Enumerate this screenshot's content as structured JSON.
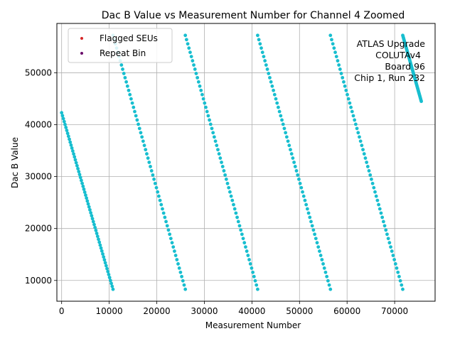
{
  "chart_data": {
    "type": "scatter",
    "title": "Dac B Value vs Measurement Number for Channel 4 Zoomed",
    "xlabel": "Measurement Number",
    "ylabel": "Dac B Value",
    "xlim": [
      -1000,
      78500
    ],
    "ylim": [
      6000,
      59500
    ],
    "xticks": [
      0,
      10000,
      20000,
      30000,
      40000,
      50000,
      60000,
      70000
    ],
    "yticks": [
      10000,
      20000,
      30000,
      40000,
      50000
    ],
    "grid": true,
    "legend_position": "top-left",
    "legend": [
      {
        "label": "Flagged SEUs",
        "color": "#d62728"
      },
      {
        "label": "Repeat Bin",
        "color": "#6a0a6a"
      }
    ],
    "annotation_lines": [
      "ATLAS Upgrade",
      "COLUTAv4",
      "Board 96",
      "Chip 1, Run 232"
    ],
    "series_color": "#17becf",
    "segments": [
      {
        "x": [
          0,
          10800
        ],
        "y": [
          42300,
          8300
        ]
      },
      {
        "x": [
          10800,
          26000
        ],
        "y": [
          57200,
          8300
        ]
      },
      {
        "x": [
          26000,
          41200
        ],
        "y": [
          57200,
          8300
        ]
      },
      {
        "x": [
          41200,
          56500
        ],
        "y": [
          57200,
          8300
        ]
      },
      {
        "x": [
          56500,
          71700
        ],
        "y": [
          57200,
          8300
        ]
      },
      {
        "x": [
          71700,
          75600
        ],
        "y": [
          57200,
          44500
        ]
      }
    ]
  }
}
